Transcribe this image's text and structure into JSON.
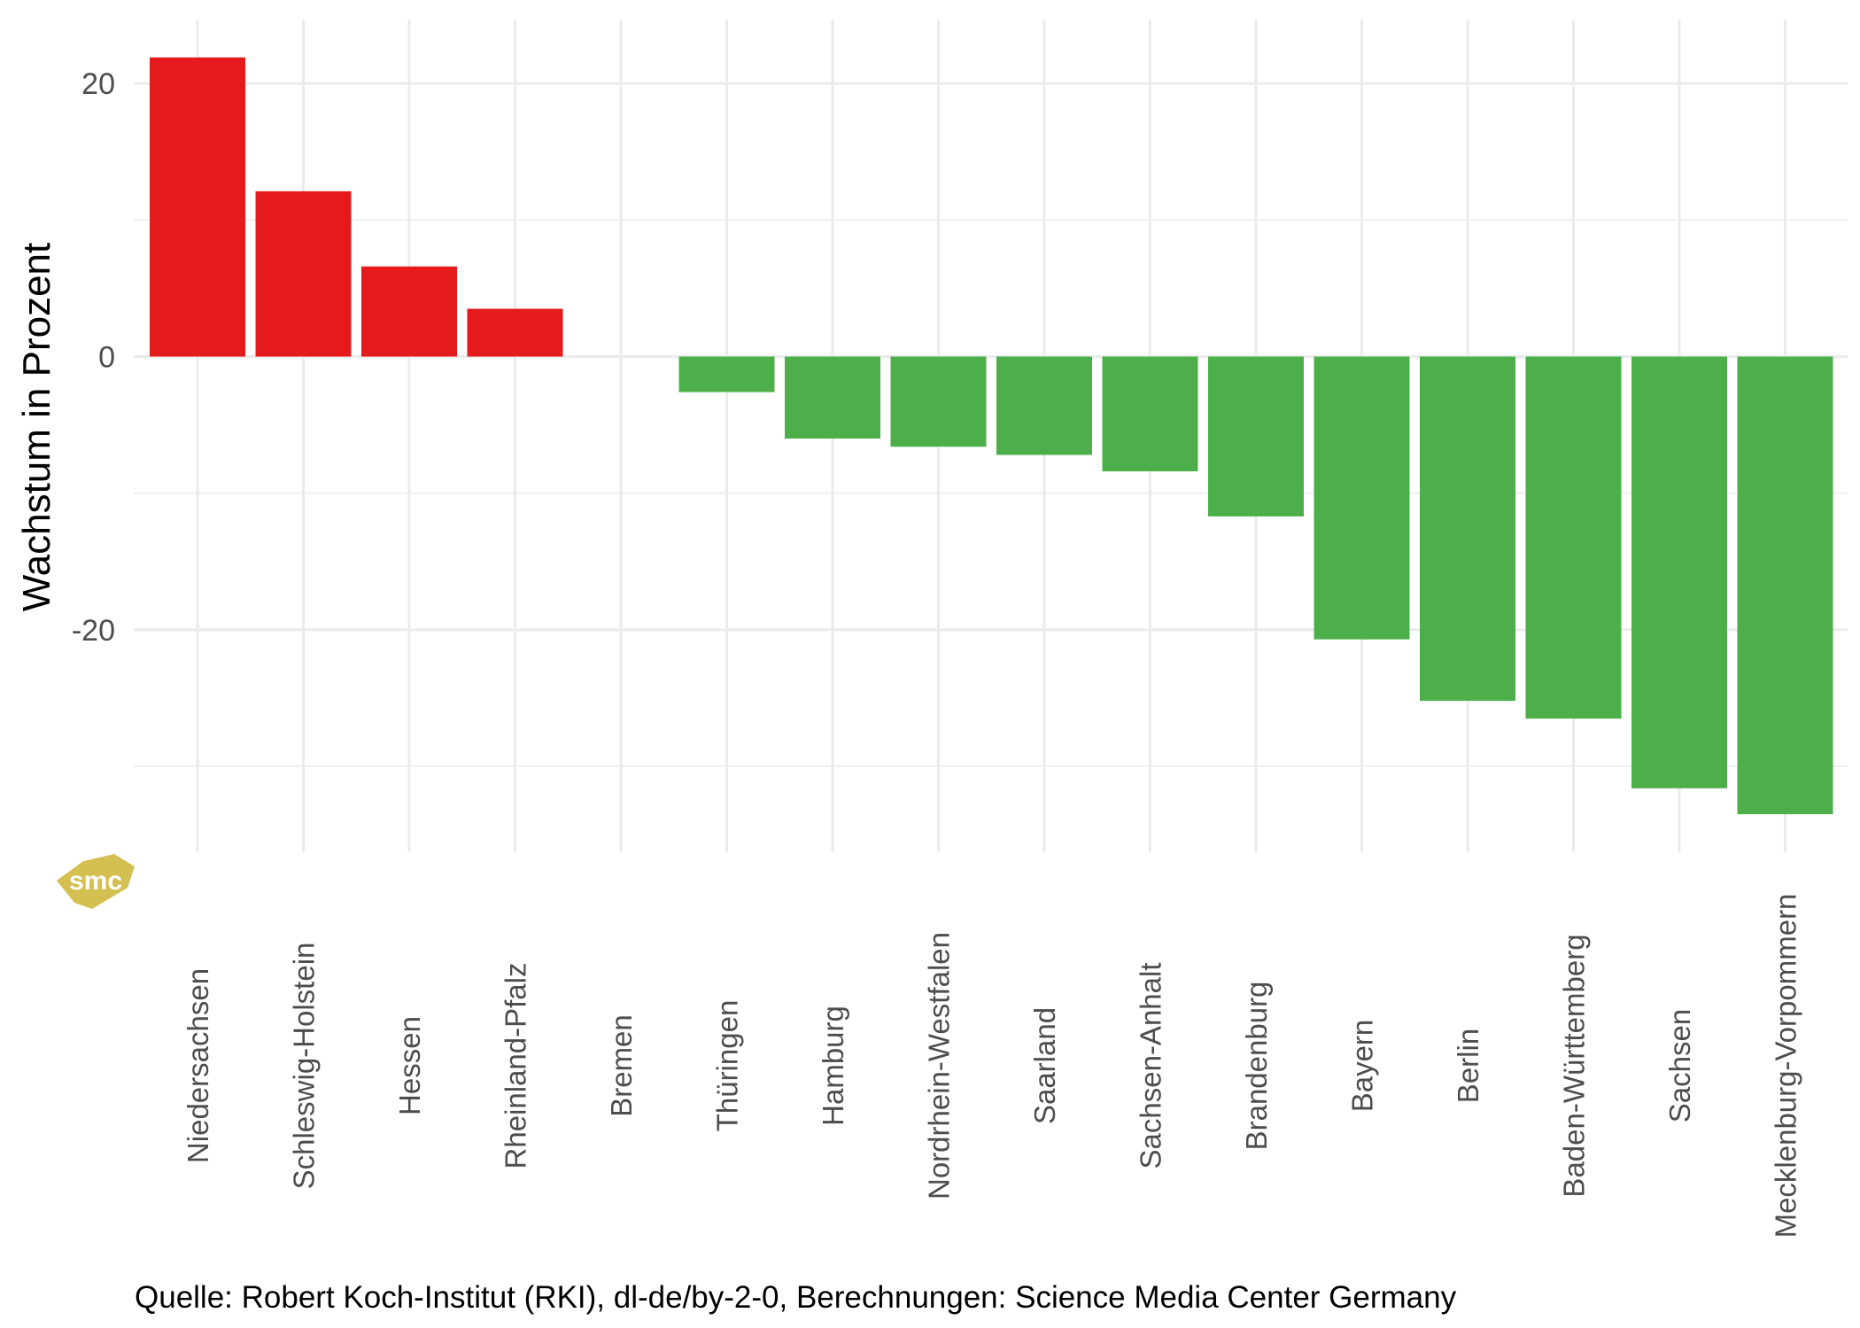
{
  "chart_data": {
    "type": "bar",
    "title": "",
    "xlabel": "",
    "ylabel": "Wachstum in Prozent",
    "ylim": [
      -35,
      23
    ],
    "yticks": [
      20,
      0,
      -20
    ],
    "grid": true,
    "categories": [
      "Niedersachsen",
      "Schleswig-Holstein",
      "Hessen",
      "Rheinland-Pfalz",
      "Bremen",
      "Thüringen",
      "Hamburg",
      "Nordrhein-Westfalen",
      "Saarland",
      "Sachsen-Anhalt",
      "Brandenburg",
      "Bayern",
      "Berlin",
      "Baden-Württemberg",
      "Sachsen",
      "Mecklenburg-Vorpommern"
    ],
    "values": [
      21.9,
      12.1,
      6.6,
      3.5,
      0,
      -2.6,
      -6.0,
      -6.6,
      -7.2,
      -8.4,
      -11.7,
      -20.7,
      -25.2,
      -26.5,
      -31.6,
      -33.5
    ],
    "colors": {
      "positive": "#E41A1C",
      "negative": "#4DAF4A"
    },
    "caption": "Quelle: Robert Koch-Institut (RKI), dl-de/by-2-0, Berechnungen: Science Media Center Germany"
  },
  "logo": {
    "text": "smc",
    "color": "#D4C050"
  }
}
